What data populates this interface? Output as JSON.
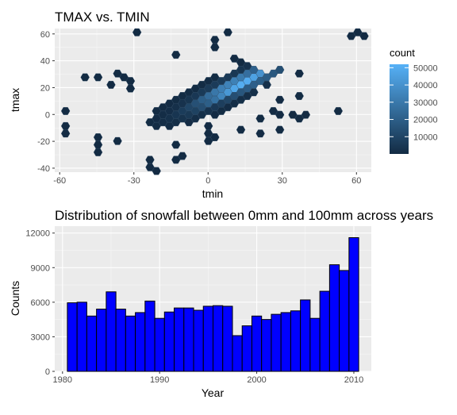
{
  "chart_data": [
    {
      "type": "heatmap",
      "subtype": "hexbin",
      "title": "TMAX vs. TMIN",
      "xlabel": "tmin",
      "ylabel": "tmax",
      "xlim": [
        -62,
        66
      ],
      "ylim": [
        -43,
        64
      ],
      "xticks": [
        -60,
        -30,
        0,
        30,
        60
      ],
      "xtick_labels": [
        "-60",
        "-30",
        "0",
        "30",
        "60"
      ],
      "yticks": [
        -40,
        -20,
        0,
        20,
        40,
        60
      ],
      "ytick_labels": [
        "-40",
        "-20",
        "0",
        "20",
        "40",
        "60"
      ],
      "grid": true,
      "legend": {
        "title": "count",
        "position": "right",
        "range": [
          1,
          52000
        ],
        "ticks": [
          10000,
          20000,
          30000,
          40000,
          50000
        ],
        "tick_labels": [
          "10000",
          "20000",
          "30000",
          "40000",
          "50000"
        ],
        "color_low": "#132B43",
        "color_high": "#56B1F7"
      },
      "hex_radius_x": 1.75,
      "density_model": {
        "ridge": {
          "slope": 0.95,
          "intercept": 10.5
        },
        "core_center": [
          12,
          24
        ],
        "peak_count": 52000
      },
      "cluster_ellipse": {
        "center": [
          0,
          12
        ],
        "a": 31,
        "b": 11.5,
        "angle_deg": 42
      },
      "extra_points": [
        [
          -28,
          60
        ],
        [
          9,
          60
        ],
        [
          2,
          55
        ],
        [
          2,
          50
        ],
        [
          -20,
          50
        ],
        [
          -12,
          44
        ],
        [
          12,
          40
        ],
        [
          -44,
          26
        ],
        [
          -50,
          26
        ],
        [
          -35,
          30
        ],
        [
          -32,
          24
        ],
        [
          -30,
          20
        ],
        [
          -40,
          20
        ],
        [
          -58,
          2
        ],
        [
          -58,
          -8
        ],
        [
          -58,
          -14
        ],
        [
          -45,
          -16
        ],
        [
          -45,
          -24
        ],
        [
          -45,
          -28
        ],
        [
          -35,
          -20
        ],
        [
          -25,
          -34
        ],
        [
          -14,
          -32
        ],
        [
          -10,
          -30
        ],
        [
          -22,
          -40
        ],
        [
          -14,
          -22
        ],
        [
          0,
          -12
        ],
        [
          0,
          -20
        ],
        [
          0,
          -8
        ],
        [
          4,
          -18
        ],
        [
          14,
          -10
        ],
        [
          22,
          -12
        ],
        [
          20,
          -4
        ],
        [
          26,
          0
        ],
        [
          30,
          0
        ],
        [
          34,
          -2
        ],
        [
          36,
          -4
        ],
        [
          40,
          0
        ],
        [
          28,
          -10
        ],
        [
          52,
          0
        ],
        [
          30,
          10
        ],
        [
          38,
          14
        ],
        [
          24,
          20
        ],
        [
          38,
          30
        ],
        [
          26,
          30
        ],
        [
          28,
          34
        ],
        [
          16,
          36
        ],
        [
          20,
          28
        ],
        [
          58,
          60
        ],
        [
          62,
          60
        ]
      ]
    },
    {
      "type": "bar",
      "title": "Distribution of snowfall between 0mm and 100mm across years",
      "xlabel": "Year",
      "ylabel": "Counts",
      "xlim": [
        1979.2,
        2011.8
      ],
      "ylim": [
        0,
        12600
      ],
      "xticks": [
        1980,
        1990,
        2000,
        2010
      ],
      "xtick_labels": [
        "1980",
        "1990",
        "2000",
        "2010"
      ],
      "yticks": [
        0,
        3000,
        6000,
        9000,
        12000
      ],
      "ytick_labels": [
        "0",
        "3000",
        "6000",
        "9000",
        "12000"
      ],
      "grid": true,
      "bar_fill": "#0000FF",
      "bar_outline": "#000000",
      "categories": [
        1981,
        1982,
        1983,
        1984,
        1985,
        1986,
        1987,
        1988,
        1989,
        1990,
        1991,
        1992,
        1993,
        1994,
        1995,
        1996,
        1997,
        1998,
        1999,
        2000,
        2001,
        2002,
        2003,
        2004,
        2005,
        2006,
        2007,
        2008,
        2009,
        2010
      ],
      "values": [
        5950,
        6000,
        4800,
        5400,
        6900,
        5400,
        4800,
        5100,
        6100,
        4600,
        5150,
        5500,
        5500,
        5300,
        5650,
        5700,
        5650,
        3100,
        3950,
        4800,
        4500,
        4950,
        5100,
        5250,
        6200,
        4600,
        6950,
        9250,
        8750,
        11600
      ]
    }
  ]
}
